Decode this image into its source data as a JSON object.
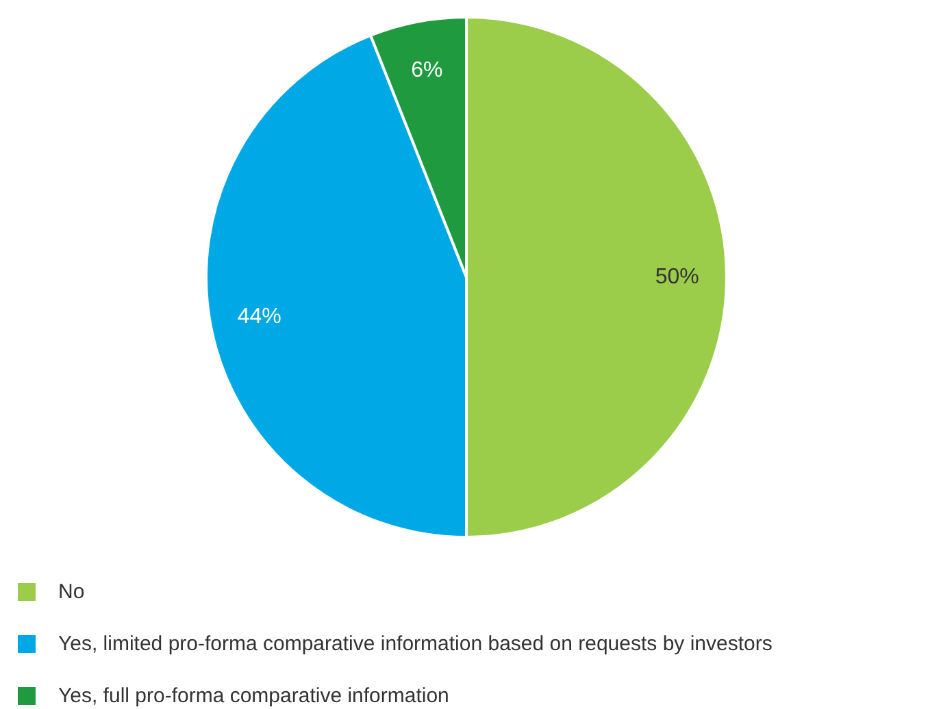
{
  "chart_data": {
    "type": "pie",
    "categories": [
      "No",
      "Yes, limited pro-forma comparative information based on requests by investors",
      "Yes, full pro-forma comparative information"
    ],
    "values": [
      50,
      44,
      6
    ],
    "colors": [
      "#9bcc4a",
      "#00a9e6",
      "#1f9a3f"
    ],
    "value_labels": [
      "50%",
      "44%",
      "6%"
    ],
    "legend": "bottom"
  }
}
